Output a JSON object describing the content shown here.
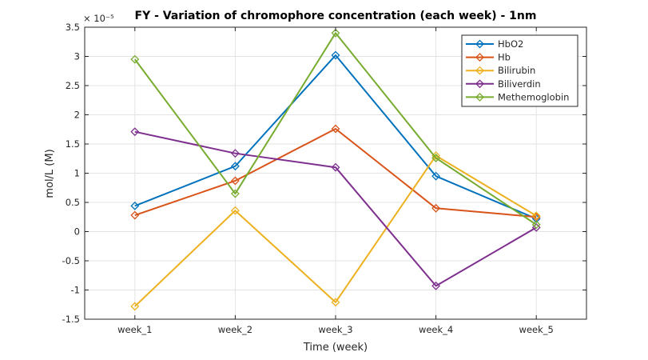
{
  "chart_data": {
    "type": "line",
    "title": "FY - Variation of chromophore concentration (each week) - 1nm",
    "xlabel": "Time (week)",
    "ylabel": "mol/L (M)",
    "y_exponent_label": "× 10⁻⁵",
    "categories": [
      "week_1",
      "week_2",
      "week_3",
      "week_4",
      "week_5"
    ],
    "ylim": [
      -1.5,
      3.5
    ],
    "yticks": [
      -1.5,
      -1,
      -0.5,
      0,
      0.5,
      1,
      1.5,
      2,
      2.5,
      3,
      3.5
    ],
    "ytick_labels": [
      "-1.5",
      "-1",
      "-0.5",
      "0",
      "0.5",
      "1",
      "1.5",
      "2",
      "2.5",
      "3",
      "3.5"
    ],
    "grid": true,
    "legend_position": "top-right",
    "marker": "diamond",
    "series": [
      {
        "name": "HbO2",
        "color": "#0072BD",
        "values": [
          0.44,
          1.12,
          3.02,
          0.95,
          0.22
        ]
      },
      {
        "name": "Hb",
        "color": "#D95319",
        "values": [
          0.28,
          0.87,
          1.76,
          0.4,
          0.25
        ]
      },
      {
        "name": "Bilirubin",
        "color": "#EDB120",
        "values": [
          -1.28,
          0.36,
          -1.21,
          1.3,
          0.27
        ]
      },
      {
        "name": "Biliverdin",
        "color": "#7E2F8E",
        "values": [
          1.71,
          1.34,
          1.1,
          -0.93,
          0.07
        ]
      },
      {
        "name": "Methemoglobin",
        "color": "#77AC30",
        "values": [
          2.95,
          0.65,
          3.4,
          1.26,
          0.12
        ]
      }
    ]
  }
}
